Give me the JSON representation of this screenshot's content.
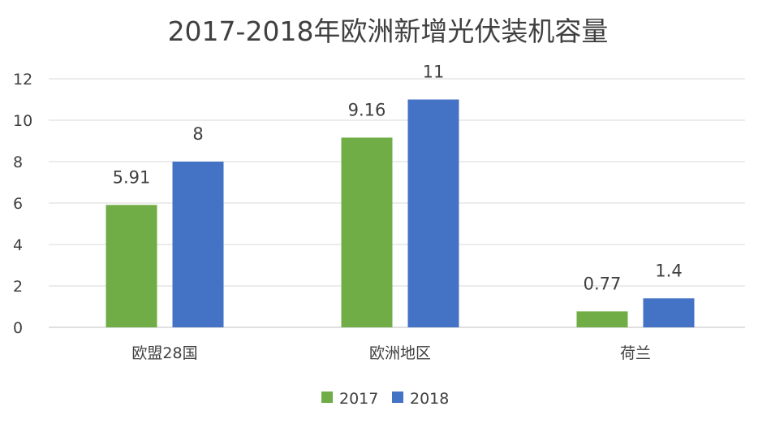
{
  "chart_data": {
    "type": "bar",
    "title": "2017-2018年欧洲新增光伏装机容量",
    "xlabel": "",
    "ylabel": "",
    "categories": [
      "欧盟28国",
      "欧洲地区",
      "荷兰"
    ],
    "series": [
      {
        "name": "2017",
        "values": [
          5.91,
          9.16,
          0.77
        ],
        "labels": [
          "5.91",
          "9.16",
          "0.77"
        ],
        "color": "#70ad47"
      },
      {
        "name": "2018",
        "values": [
          8,
          11,
          1.4
        ],
        "labels": [
          "8",
          "11",
          "1.4"
        ],
        "color": "#4472c4"
      }
    ],
    "ylim": [
      0,
      12
    ],
    "yticks": [
      0,
      2,
      4,
      6,
      8,
      10,
      12
    ],
    "grid": true,
    "legend": "bottom"
  }
}
